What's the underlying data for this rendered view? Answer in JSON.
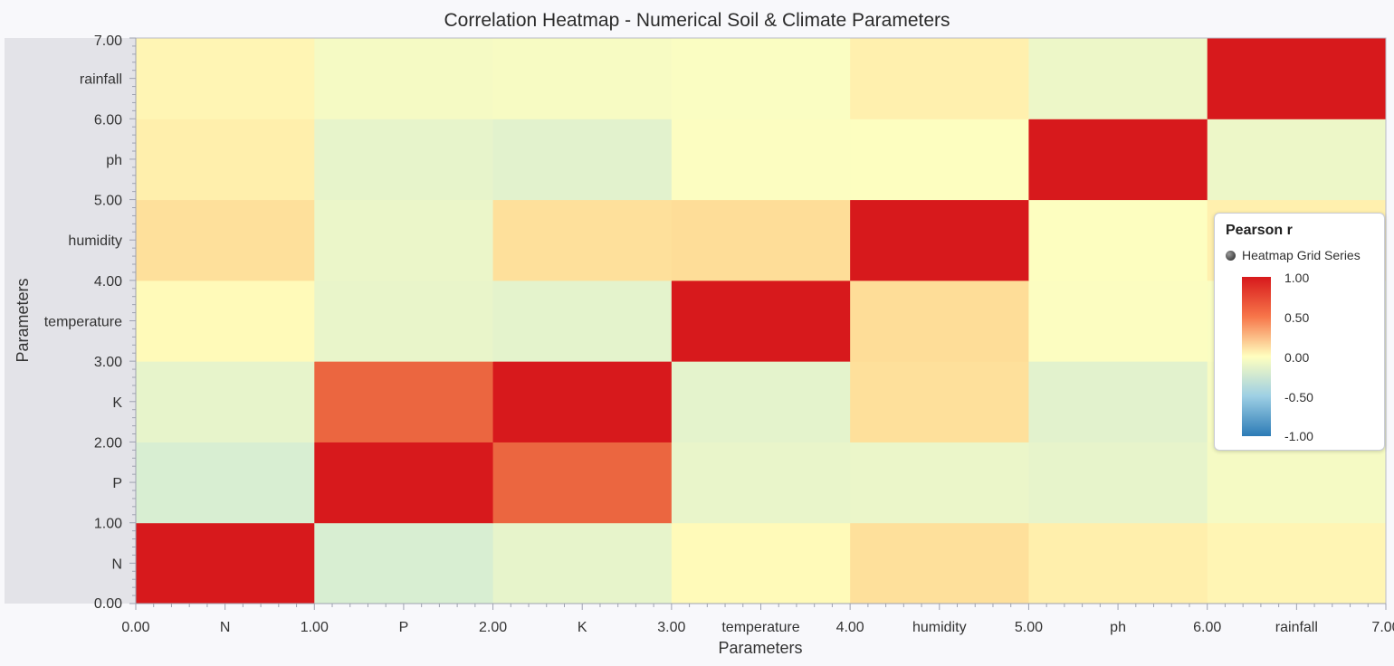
{
  "chart_data": {
    "type": "heatmap",
    "title": "Correlation Heatmap - Numerical Soil & Climate Parameters",
    "xlabel": "Parameters",
    "ylabel": "Parameters",
    "categories": [
      "N",
      "P",
      "K",
      "temperature",
      "humidity",
      "ph",
      "rainfall"
    ],
    "xlim": [
      0,
      7
    ],
    "ylim": [
      0,
      7
    ],
    "x_ticks": [
      {
        "value": 0,
        "label": "0.00"
      },
      {
        "value": 0.5,
        "label": "N"
      },
      {
        "value": 1,
        "label": "1.00"
      },
      {
        "value": 1.5,
        "label": "P"
      },
      {
        "value": 2,
        "label": "2.00"
      },
      {
        "value": 2.5,
        "label": "K"
      },
      {
        "value": 3,
        "label": "3.00"
      },
      {
        "value": 3.5,
        "label": "temperature"
      },
      {
        "value": 4,
        "label": "4.00"
      },
      {
        "value": 4.5,
        "label": "humidity"
      },
      {
        "value": 5,
        "label": "5.00"
      },
      {
        "value": 5.5,
        "label": "ph"
      },
      {
        "value": 6,
        "label": "6.00"
      },
      {
        "value": 6.5,
        "label": "rainfall"
      },
      {
        "value": 7,
        "label": "7.00"
      }
    ],
    "y_ticks": [
      {
        "value": 0,
        "label": "0.00"
      },
      {
        "value": 0.5,
        "label": "N"
      },
      {
        "value": 1,
        "label": "1.00"
      },
      {
        "value": 1.5,
        "label": "P"
      },
      {
        "value": 2,
        "label": "2.00"
      },
      {
        "value": 2.5,
        "label": "K"
      },
      {
        "value": 3,
        "label": "3.00"
      },
      {
        "value": 3.5,
        "label": "temperature"
      },
      {
        "value": 4,
        "label": "4.00"
      },
      {
        "value": 4.5,
        "label": "humidity"
      },
      {
        "value": 5,
        "label": "5.00"
      },
      {
        "value": 5.5,
        "label": "ph"
      },
      {
        "value": 6,
        "label": "6.00"
      },
      {
        "value": 6.5,
        "label": "rainfall"
      },
      {
        "value": 7,
        "label": "7.00"
      }
    ],
    "matrix": [
      [
        1.0,
        -0.23,
        -0.14,
        0.03,
        0.19,
        0.1,
        0.06
      ],
      [
        -0.23,
        1.0,
        0.74,
        -0.13,
        -0.12,
        -0.14,
        -0.06
      ],
      [
        -0.14,
        0.74,
        1.0,
        -0.16,
        0.19,
        -0.17,
        -0.05
      ],
      [
        0.03,
        -0.13,
        -0.16,
        1.0,
        0.21,
        -0.02,
        -0.03
      ],
      [
        0.19,
        -0.12,
        0.19,
        0.21,
        1.0,
        -0.01,
        0.09
      ],
      [
        0.1,
        -0.14,
        -0.17,
        -0.02,
        -0.01,
        1.0,
        -0.11
      ],
      [
        0.06,
        -0.06,
        -0.05,
        -0.03,
        0.09,
        -0.11,
        1.0
      ]
    ],
    "color_scale": {
      "min": -1,
      "max": 1,
      "stops": [
        {
          "value": -1.0,
          "color": "#2c7bb6"
        },
        {
          "value": -0.5,
          "color": "#abd9e9"
        },
        {
          "value": 0.0,
          "color": "#ffffbf"
        },
        {
          "value": 0.5,
          "color": "#fdae61"
        },
        {
          "value": 1.0,
          "color": "#d7191c"
        }
      ]
    },
    "legend": {
      "title": "Pearson r",
      "series_name": "Heatmap Grid Series",
      "position": "right",
      "ticks": [
        "1.00",
        "0.50",
        "0.00",
        "-0.50",
        "-1.00"
      ]
    },
    "grid": false
  }
}
